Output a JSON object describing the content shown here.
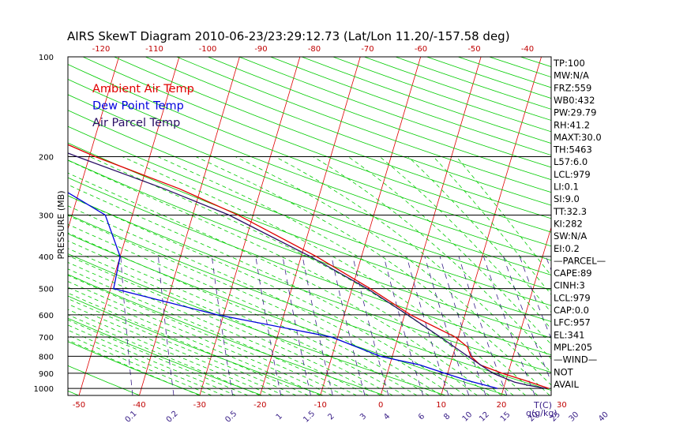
{
  "chart_data": {
    "type": "line",
    "title": "AIRS SkewT Diagram 2010-06-23/23:29:12.73 (Lat/Lon 11.20/-157.58 deg)",
    "ylabel": "PRESSURE (MB)",
    "xlabel": "T(C)",
    "mixing_ratio_label": "q(g/kg)",
    "y_scale": "log",
    "ylim": [
      1050,
      100
    ],
    "xlim_bottom": [
      -55,
      32
    ],
    "pressure_ticks": [
      100,
      200,
      300,
      400,
      500,
      600,
      700,
      800,
      900,
      1000
    ],
    "bottom_temp_ticks": [
      -50,
      -40,
      -30,
      -20,
      -10,
      0,
      10,
      20,
      30
    ],
    "top_temp_ticks": [
      -120,
      -110,
      -100,
      -90,
      -80,
      -70,
      -60,
      -50,
      -40
    ],
    "mixing_ratio_ticks": [
      {
        "label": "0.1",
        "value": 0.1
      },
      {
        "label": "0.2",
        "value": 0.2
      },
      {
        "label": "0.5",
        "value": 0.5
      },
      {
        "label": "1",
        "value": 1
      },
      {
        "label": "1.5",
        "value": 1.5
      },
      {
        "label": "2",
        "value": 2
      },
      {
        "label": "3",
        "value": 3
      },
      {
        "label": "4",
        "value": 4
      },
      {
        "label": "6",
        "value": 6
      },
      {
        "label": "8",
        "value": 8
      },
      {
        "label": "10",
        "value": 10
      },
      {
        "label": "12",
        "value": 12
      },
      {
        "label": "15",
        "value": 15
      },
      {
        "label": "20",
        "value": 20
      },
      {
        "label": "25",
        "value": 25
      },
      {
        "label": "30",
        "value": 30
      },
      {
        "label": "40",
        "value": 40
      }
    ],
    "legend_position": "top-left",
    "series": [
      {
        "name": "Ambient Air Temp",
        "color": "#e00000",
        "points": [
          [
            100,
            -80.0
          ],
          [
            150,
            -73.5
          ],
          [
            170,
            -69.0
          ],
          [
            200,
            -59.0
          ],
          [
            250,
            -43.5
          ],
          [
            300,
            -32.5
          ],
          [
            400,
            -17.5
          ],
          [
            500,
            -7.0
          ],
          [
            600,
            1.0
          ],
          [
            700,
            9.5
          ],
          [
            750,
            12.0
          ],
          [
            800,
            13.0
          ],
          [
            850,
            15.0
          ],
          [
            900,
            19.0
          ],
          [
            950,
            23.5
          ],
          [
            1000,
            27.5
          ]
        ]
      },
      {
        "name": "Dew Point Temp",
        "color": "#0000dd",
        "points": [
          [
            100,
            -91.0
          ],
          [
            150,
            -84.0
          ],
          [
            200,
            -71.0
          ],
          [
            250,
            -63.0
          ],
          [
            300,
            -54.5
          ],
          [
            400,
            -50.0
          ],
          [
            500,
            -49.5
          ],
          [
            600,
            -31.0
          ],
          [
            700,
            -11.0
          ],
          [
            800,
            -2.0
          ],
          [
            850,
            5.0
          ],
          [
            900,
            9.5
          ],
          [
            950,
            14.0
          ],
          [
            1000,
            19.0
          ]
        ]
      },
      {
        "name": "Air Parcel Temp",
        "color": "#2a1066",
        "points": [
          [
            100,
            -99.0
          ],
          [
            150,
            -82.0
          ],
          [
            200,
            -62.0
          ],
          [
            250,
            -46.0
          ],
          [
            300,
            -34.0
          ],
          [
            400,
            -18.5
          ],
          [
            500,
            -7.5
          ],
          [
            600,
            0.5
          ],
          [
            700,
            7.0
          ],
          [
            800,
            12.5
          ],
          [
            900,
            17.5
          ],
          [
            957,
            21.5
          ],
          [
            979,
            24.0
          ],
          [
            1000,
            27.0
          ]
        ]
      }
    ]
  },
  "indices": [
    "TP:100",
    "MW:N/A",
    "FRZ:559",
    "WB0:432",
    "PW:29.79",
    "RH:41.2",
    "MAXT:30.0",
    "TH:5463",
    "L57:6.0",
    "LCL:979",
    "LI:0.1",
    "SI:9.0",
    "TT:32.3",
    "KI:282",
    "SW:N/A",
    "EI:0.2",
    "—PARCEL—",
    "CAPE:89",
    "CINH:3",
    "LCL:979",
    "CAP:0.0",
    "LFC:957",
    "EL:341",
    "MPL:205",
    "—WIND—",
    "NOT",
    "AVAIL"
  ],
  "colors": {
    "isotherm": "#e00000",
    "dry_adiabat": "#00cc00",
    "moist_adiabat": "#00cc00",
    "mixing_ratio": "#3a2088",
    "isobar": "#000000",
    "tick_label": "#c00000",
    "mixing_label": "#3a2088"
  }
}
